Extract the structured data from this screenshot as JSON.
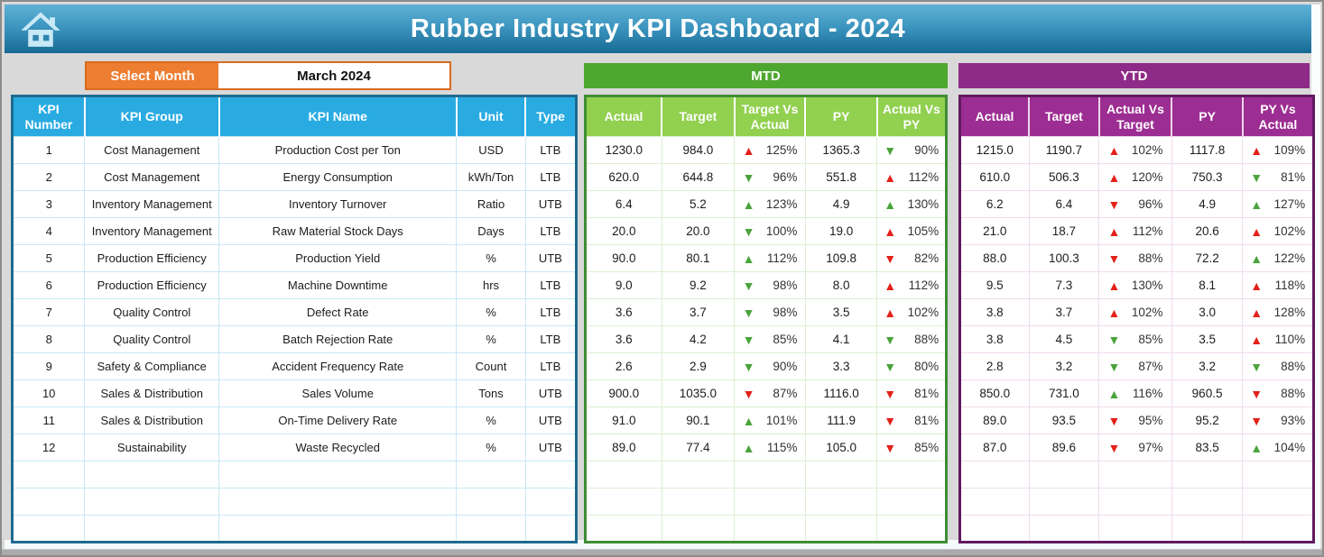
{
  "header": {
    "title": "Rubber Industry KPI Dashboard - 2024"
  },
  "month_selector": {
    "label": "Select Month",
    "value": "March 2024"
  },
  "kpi_table": {
    "headers": [
      "KPI Number",
      "KPI Group",
      "KPI Name",
      "Unit",
      "Type"
    ],
    "rows": [
      {
        "number": "1",
        "group": "Cost Management",
        "name": "Production Cost per Ton",
        "unit": "USD",
        "type": "LTB"
      },
      {
        "number": "2",
        "group": "Cost Management",
        "name": "Energy Consumption",
        "unit": "kWh/Ton",
        "type": "LTB"
      },
      {
        "number": "3",
        "group": "Inventory Management",
        "name": "Inventory Turnover",
        "unit": "Ratio",
        "type": "UTB"
      },
      {
        "number": "4",
        "group": "Inventory Management",
        "name": "Raw Material Stock Days",
        "unit": "Days",
        "type": "LTB"
      },
      {
        "number": "5",
        "group": "Production Efficiency",
        "name": "Production Yield",
        "unit": "%",
        "type": "UTB"
      },
      {
        "number": "6",
        "group": "Production Efficiency",
        "name": "Machine Downtime",
        "unit": "hrs",
        "type": "LTB"
      },
      {
        "number": "7",
        "group": "Quality Control",
        "name": "Defect Rate",
        "unit": "%",
        "type": "LTB"
      },
      {
        "number": "8",
        "group": "Quality Control",
        "name": "Batch Rejection Rate",
        "unit": "%",
        "type": "LTB"
      },
      {
        "number": "9",
        "group": "Safety & Compliance",
        "name": "Accident Frequency Rate",
        "unit": "Count",
        "type": "LTB"
      },
      {
        "number": "10",
        "group": "Sales & Distribution",
        "name": "Sales Volume",
        "unit": "Tons",
        "type": "UTB"
      },
      {
        "number": "11",
        "group": "Sales & Distribution",
        "name": "On-Time Delivery Rate",
        "unit": "%",
        "type": "UTB"
      },
      {
        "number": "12",
        "group": "Sustainability",
        "name": "Waste Recycled",
        "unit": "%",
        "type": "UTB"
      }
    ],
    "empty_rows": 3
  },
  "mtd": {
    "title": "MTD",
    "headers": [
      "Actual",
      "Target",
      "Target Vs Actual",
      "PY",
      "Actual Vs PY"
    ],
    "rows": [
      {
        "actual": "1230.0",
        "target": "984.0",
        "target_vs_actual": {
          "dir": "up",
          "color": "red",
          "pct": "125%"
        },
        "py": "1365.3",
        "actual_vs_py": {
          "dir": "down",
          "color": "green",
          "pct": "90%"
        }
      },
      {
        "actual": "620.0",
        "target": "644.8",
        "target_vs_actual": {
          "dir": "down",
          "color": "green",
          "pct": "96%"
        },
        "py": "551.8",
        "actual_vs_py": {
          "dir": "up",
          "color": "red",
          "pct": "112%"
        }
      },
      {
        "actual": "6.4",
        "target": "5.2",
        "target_vs_actual": {
          "dir": "up",
          "color": "green",
          "pct": "123%"
        },
        "py": "4.9",
        "actual_vs_py": {
          "dir": "up",
          "color": "green",
          "pct": "130%"
        }
      },
      {
        "actual": "20.0",
        "target": "20.0",
        "target_vs_actual": {
          "dir": "down",
          "color": "green",
          "pct": "100%"
        },
        "py": "19.0",
        "actual_vs_py": {
          "dir": "up",
          "color": "red",
          "pct": "105%"
        }
      },
      {
        "actual": "90.0",
        "target": "80.1",
        "target_vs_actual": {
          "dir": "up",
          "color": "green",
          "pct": "112%"
        },
        "py": "109.8",
        "actual_vs_py": {
          "dir": "down",
          "color": "red",
          "pct": "82%"
        }
      },
      {
        "actual": "9.0",
        "target": "9.2",
        "target_vs_actual": {
          "dir": "down",
          "color": "green",
          "pct": "98%"
        },
        "py": "8.0",
        "actual_vs_py": {
          "dir": "up",
          "color": "red",
          "pct": "112%"
        }
      },
      {
        "actual": "3.6",
        "target": "3.7",
        "target_vs_actual": {
          "dir": "down",
          "color": "green",
          "pct": "98%"
        },
        "py": "3.5",
        "actual_vs_py": {
          "dir": "up",
          "color": "red",
          "pct": "102%"
        }
      },
      {
        "actual": "3.6",
        "target": "4.2",
        "target_vs_actual": {
          "dir": "down",
          "color": "green",
          "pct": "85%"
        },
        "py": "4.1",
        "actual_vs_py": {
          "dir": "down",
          "color": "green",
          "pct": "88%"
        }
      },
      {
        "actual": "2.6",
        "target": "2.9",
        "target_vs_actual": {
          "dir": "down",
          "color": "green",
          "pct": "90%"
        },
        "py": "3.3",
        "actual_vs_py": {
          "dir": "down",
          "color": "green",
          "pct": "80%"
        }
      },
      {
        "actual": "900.0",
        "target": "1035.0",
        "target_vs_actual": {
          "dir": "down",
          "color": "red",
          "pct": "87%"
        },
        "py": "1116.0",
        "actual_vs_py": {
          "dir": "down",
          "color": "red",
          "pct": "81%"
        }
      },
      {
        "actual": "91.0",
        "target": "90.1",
        "target_vs_actual": {
          "dir": "up",
          "color": "green",
          "pct": "101%"
        },
        "py": "111.9",
        "actual_vs_py": {
          "dir": "down",
          "color": "red",
          "pct": "81%"
        }
      },
      {
        "actual": "89.0",
        "target": "77.4",
        "target_vs_actual": {
          "dir": "up",
          "color": "green",
          "pct": "115%"
        },
        "py": "105.0",
        "actual_vs_py": {
          "dir": "down",
          "color": "red",
          "pct": "85%"
        }
      }
    ],
    "empty_rows": 3
  },
  "ytd": {
    "title": "YTD",
    "headers": [
      "Actual",
      "Target",
      "Actual Vs Target",
      "PY",
      "PY Vs Actual"
    ],
    "rows": [
      {
        "actual": "1215.0",
        "target": "1190.7",
        "actual_vs_target": {
          "dir": "up",
          "color": "red",
          "pct": "102%"
        },
        "py": "1117.8",
        "py_vs_actual": {
          "dir": "up",
          "color": "red",
          "pct": "109%"
        }
      },
      {
        "actual": "610.0",
        "target": "506.3",
        "actual_vs_target": {
          "dir": "up",
          "color": "red",
          "pct": "120%"
        },
        "py": "750.3",
        "py_vs_actual": {
          "dir": "down",
          "color": "green",
          "pct": "81%"
        }
      },
      {
        "actual": "6.2",
        "target": "6.4",
        "actual_vs_target": {
          "dir": "down",
          "color": "red",
          "pct": "96%"
        },
        "py": "4.9",
        "py_vs_actual": {
          "dir": "up",
          "color": "green",
          "pct": "127%"
        }
      },
      {
        "actual": "21.0",
        "target": "18.7",
        "actual_vs_target": {
          "dir": "up",
          "color": "red",
          "pct": "112%"
        },
        "py": "20.6",
        "py_vs_actual": {
          "dir": "up",
          "color": "red",
          "pct": "102%"
        }
      },
      {
        "actual": "88.0",
        "target": "100.3",
        "actual_vs_target": {
          "dir": "down",
          "color": "red",
          "pct": "88%"
        },
        "py": "72.2",
        "py_vs_actual": {
          "dir": "up",
          "color": "green",
          "pct": "122%"
        }
      },
      {
        "actual": "9.5",
        "target": "7.3",
        "actual_vs_target": {
          "dir": "up",
          "color": "red",
          "pct": "130%"
        },
        "py": "8.1",
        "py_vs_actual": {
          "dir": "up",
          "color": "red",
          "pct": "118%"
        }
      },
      {
        "actual": "3.8",
        "target": "3.7",
        "actual_vs_target": {
          "dir": "up",
          "color": "red",
          "pct": "102%"
        },
        "py": "3.0",
        "py_vs_actual": {
          "dir": "up",
          "color": "red",
          "pct": "128%"
        }
      },
      {
        "actual": "3.8",
        "target": "4.5",
        "actual_vs_target": {
          "dir": "down",
          "color": "green",
          "pct": "85%"
        },
        "py": "3.5",
        "py_vs_actual": {
          "dir": "up",
          "color": "red",
          "pct": "110%"
        }
      },
      {
        "actual": "2.8",
        "target": "3.2",
        "actual_vs_target": {
          "dir": "down",
          "color": "green",
          "pct": "87%"
        },
        "py": "3.2",
        "py_vs_actual": {
          "dir": "down",
          "color": "green",
          "pct": "88%"
        }
      },
      {
        "actual": "850.0",
        "target": "731.0",
        "actual_vs_target": {
          "dir": "up",
          "color": "green",
          "pct": "116%"
        },
        "py": "960.5",
        "py_vs_actual": {
          "dir": "down",
          "color": "red",
          "pct": "88%"
        }
      },
      {
        "actual": "89.0",
        "target": "93.5",
        "actual_vs_target": {
          "dir": "down",
          "color": "red",
          "pct": "95%"
        },
        "py": "95.2",
        "py_vs_actual": {
          "dir": "down",
          "color": "red",
          "pct": "93%"
        }
      },
      {
        "actual": "87.0",
        "target": "89.6",
        "actual_vs_target": {
          "dir": "down",
          "color": "red",
          "pct": "97%"
        },
        "py": "83.5",
        "py_vs_actual": {
          "dir": "up",
          "color": "green",
          "pct": "104%"
        }
      }
    ],
    "empty_rows": 3
  },
  "colors": {
    "titlebar_top": "#5FB2D5",
    "titlebar_bottom": "#176A93",
    "orange": "#ED7D31",
    "kpi_header_blue": "#29ABE2",
    "kpi_border": "#1E6B90",
    "mtd_banner_green": "#4EA72E",
    "mtd_header_green": "#92D050",
    "mtd_border": "#3E8E35",
    "ytd_banner_purple": "#8E2A87",
    "ytd_header_purple": "#9C2D92",
    "ytd_border": "#61195F",
    "arrow_red": "#E32119",
    "arrow_green": "#4AA43B",
    "page_bg": "#D9D9D9"
  }
}
